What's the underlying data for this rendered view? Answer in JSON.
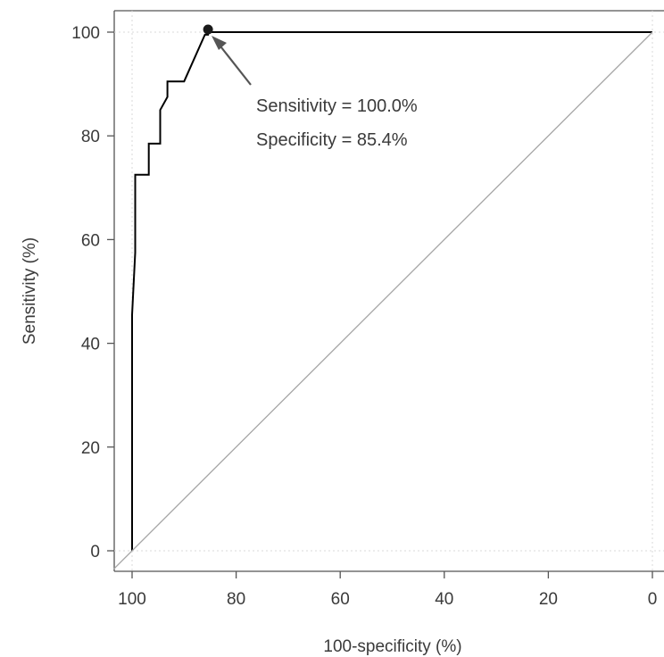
{
  "chart_data": {
    "type": "line",
    "xlabel": "100-specificity (%)",
    "ylabel": "Sensitivity (%)",
    "x_axis_reversed": true,
    "xlim": [
      100,
      0
    ],
    "ylim": [
      0,
      100
    ],
    "x_ticks": [
      100,
      80,
      60,
      40,
      20,
      0
    ],
    "y_ticks": [
      0,
      20,
      40,
      60,
      80,
      100
    ],
    "grid": "dotted at 0 and 100 only",
    "series": [
      {
        "style": "step",
        "color": "#000000",
        "x": [
          100,
          100,
          99.4,
          99.4,
          98.5,
          96.8,
          96.8,
          94.6,
          94.6,
          93.2,
          93.2,
          91.3,
          90.0,
          86.0,
          85.4,
          85.4,
          0
        ],
        "y": [
          0,
          45.5,
          57.5,
          72.5,
          72.5,
          72.5,
          78.5,
          78.5,
          85.0,
          87.5,
          90.5,
          90.5,
          90.5,
          99.5,
          99.5,
          100,
          100
        ]
      },
      {
        "style": "diagonal",
        "color": "#a6a6a6",
        "x": [
          103.5,
          0
        ],
        "y": [
          -3.5,
          100
        ]
      }
    ],
    "marker": {
      "x": 85.4,
      "y": 100,
      "color": "#1a1a1a"
    },
    "annotations": [
      {
        "text": "Sensitivity = 100.0%"
      },
      {
        "text": "Specificity = 85.4%"
      }
    ]
  }
}
